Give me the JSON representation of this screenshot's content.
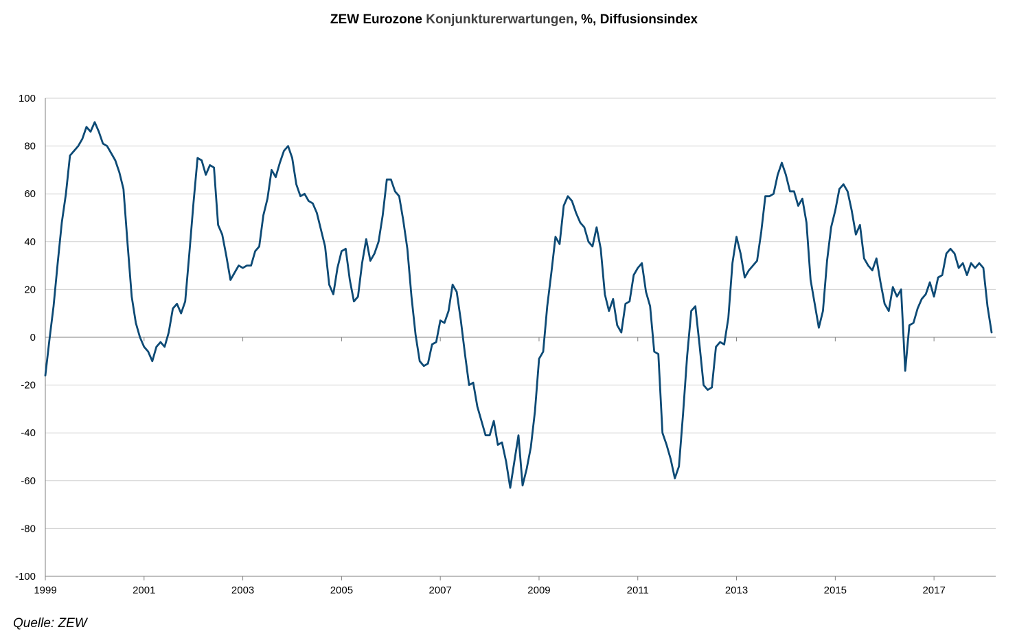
{
  "title": {
    "part1": "ZEW Eurozone ",
    "part2": "Konjunkturerwartungen",
    "part3": ", %,  Diffusionsindex"
  },
  "source": "Quelle: ZEW",
  "colors": {
    "line": "#0d4a75",
    "grid": "#d0d0d0",
    "zero_axis": "#7f7f7f"
  },
  "chart_data": {
    "type": "line",
    "title": "ZEW Eurozone Konjunkturerwartungen, %,  Diffusionsindex",
    "xlabel": "",
    "ylabel": "",
    "ylim": [
      -100,
      100
    ],
    "yticks": [
      -100,
      -80,
      -60,
      -40,
      -20,
      0,
      20,
      40,
      60,
      80,
      100
    ],
    "xlim": [
      1999.0,
      2018.25
    ],
    "xticks": [
      "1999",
      "2001",
      "2003",
      "2005",
      "2007",
      "2009",
      "2011",
      "2013",
      "2015",
      "2017"
    ],
    "grid": true,
    "legend": "none",
    "series": [
      {
        "frequency": "monthly",
        "start": "1999-01",
        "values": [
          -16,
          -1,
          13,
          31,
          48,
          60,
          76,
          78,
          80,
          83,
          88,
          86,
          90,
          86,
          81,
          80,
          77,
          74,
          69,
          62,
          39,
          17,
          6,
          0,
          -4,
          -6,
          -10,
          -4,
          -2,
          -4,
          2,
          12,
          14,
          10,
          15,
          35,
          56,
          75,
          74,
          68,
          72,
          71,
          47,
          43,
          34,
          24,
          27,
          30,
          29,
          30,
          30,
          36,
          38,
          51,
          58,
          70,
          67,
          73,
          78,
          80,
          75,
          64,
          59,
          60,
          57,
          56,
          52,
          45,
          38,
          22,
          18,
          29,
          36,
          37,
          24,
          15,
          17,
          31,
          41,
          32,
          35,
          40,
          51,
          66,
          66,
          61,
          59,
          49,
          37,
          17,
          1,
          -10,
          -12,
          -11,
          -3,
          -2,
          7,
          6,
          11,
          22,
          19,
          7,
          -7,
          -20,
          -19,
          -29,
          -35,
          -41,
          -41,
          -35,
          -45,
          -44,
          -52,
          -63,
          -52,
          -41,
          -62,
          -55,
          -46,
          -31,
          -9,
          -6,
          13,
          27,
          42,
          39,
          55,
          59,
          57,
          52,
          48,
          46,
          40,
          38,
          46,
          37,
          18,
          11,
          16,
          5,
          2,
          14,
          15,
          26,
          29,
          31,
          19,
          13,
          -6,
          -7,
          -40,
          -45,
          -51,
          -59,
          -54,
          -32,
          -8,
          11,
          13,
          -3,
          -20,
          -22,
          -21,
          -4,
          -2,
          -3,
          8,
          31,
          42,
          35,
          25,
          28,
          30,
          32,
          44,
          59,
          59,
          60,
          68,
          73,
          68,
          61,
          61,
          55,
          58,
          48,
          24,
          14,
          4,
          11,
          32,
          46,
          53,
          62,
          64,
          61,
          53,
          43,
          47,
          33,
          30,
          28,
          33,
          23,
          14,
          11,
          21,
          17,
          20,
          -14,
          5,
          6,
          12,
          16,
          18,
          23,
          17,
          25,
          26,
          35,
          37,
          35,
          29,
          31,
          26,
          31,
          29,
          31,
          29,
          13,
          2
        ]
      }
    ]
  }
}
